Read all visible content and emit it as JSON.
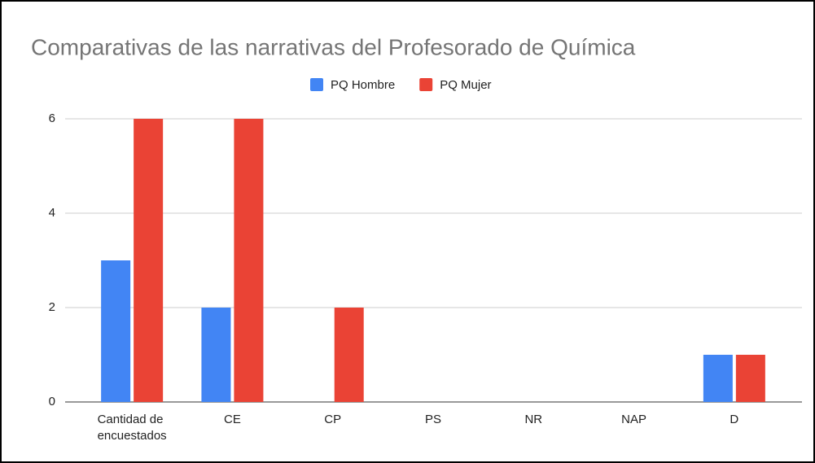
{
  "chart_data": {
    "type": "bar",
    "title": "Comparativas de las narrativas del Profesorado de Química",
    "categories": [
      "Cantidad de encuestados",
      "CE",
      "CP",
      "PS",
      "NR",
      "NAP",
      "D"
    ],
    "series": [
      {
        "name": "PQ Hombre",
        "color": "#4285f4",
        "values": [
          3,
          2,
          0,
          0,
          0,
          0,
          1
        ]
      },
      {
        "name": "PQ Mujer",
        "color": "#ea4335",
        "values": [
          6,
          6,
          2,
          0,
          0,
          0,
          1
        ]
      }
    ],
    "ylim": [
      0,
      6
    ],
    "yticks": [
      0,
      2,
      4,
      6
    ],
    "grid": true,
    "legend": "top"
  }
}
